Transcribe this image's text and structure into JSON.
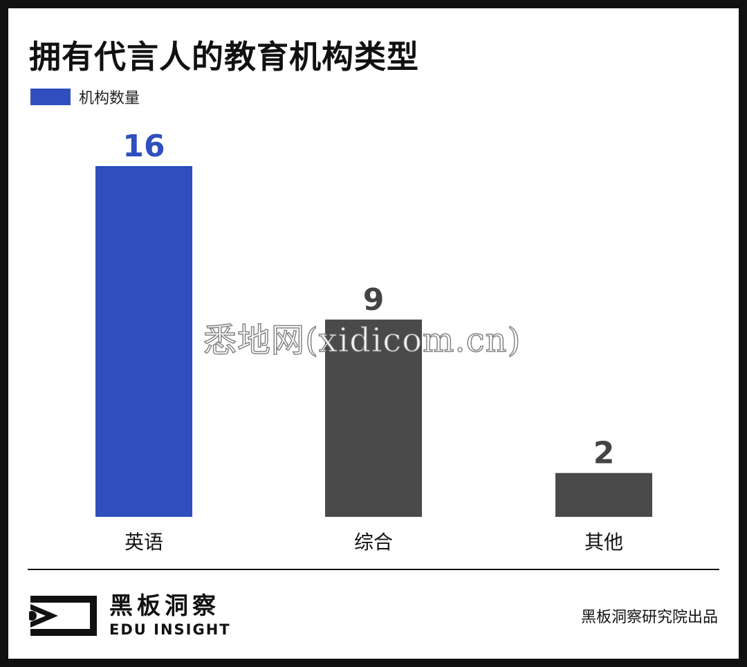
{
  "title": "拥有代言人的教育机构类型",
  "legend": {
    "label": "机构数量",
    "color": "#2e4fbd"
  },
  "chart_data": {
    "type": "bar",
    "categories": [
      "英语",
      "综合",
      "其他"
    ],
    "values": [
      16,
      9,
      2
    ],
    "bar_colors": [
      "#2e4fbd",
      "#4a4a4a",
      "#4a4a4a"
    ],
    "value_label_colors": [
      "#2e4fbd",
      "#444444",
      "#444444"
    ],
    "series": [
      {
        "name": "机构数量",
        "values": [
          16,
          9,
          2
        ]
      }
    ],
    "title": "拥有代言人的教育机构类型",
    "ylim": [
      0,
      16
    ],
    "grid": false,
    "legend_position": "top-left"
  },
  "watermark": "悉地网(xidicom.cn)",
  "footer": {
    "brand_cn": "黑板洞察",
    "brand_en": "EDU INSIGHT",
    "credit": "黑板洞察研究院出品"
  }
}
